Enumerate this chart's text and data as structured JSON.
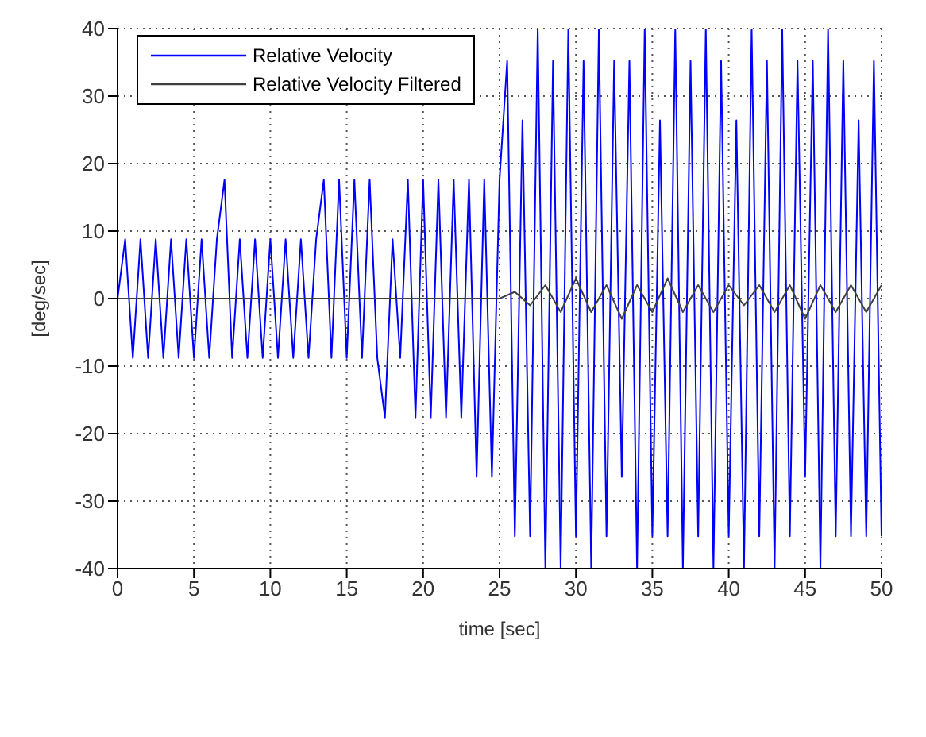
{
  "chart_data": {
    "type": "line",
    "xlabel": "time [sec]",
    "ylabel": "[deg/sec]",
    "xlim": [
      0,
      50
    ],
    "xticks": [
      0,
      5,
      10,
      15,
      20,
      25,
      30,
      35,
      40,
      45,
      50
    ],
    "ylim": [
      -40,
      40
    ],
    "yticks": [
      -40,
      -30,
      -20,
      -10,
      0,
      10,
      20,
      30,
      40
    ],
    "grid": true,
    "legend": "top left",
    "marker": "none",
    "line_style": "solid",
    "series": [
      {
        "name": "Relative Velocity",
        "color": "#0000ff",
        "x": [
          0,
          0.5,
          1,
          1.5,
          2,
          2.5,
          3,
          3.5,
          4,
          4.5,
          5,
          5.5,
          6,
          6.5,
          7,
          7.5,
          8,
          8.5,
          9,
          9.5,
          10,
          10.5,
          11,
          11.5,
          12,
          12.5,
          13,
          13.5,
          14,
          14.5,
          15,
          15.5,
          16,
          16.5,
          17,
          17.5,
          18,
          18.5,
          19,
          19.5,
          20,
          20.5,
          21,
          21.5,
          22,
          22.5,
          23,
          23.5,
          24,
          24.5,
          25,
          25.5,
          26,
          26.5,
          27,
          27.5,
          28,
          28.5,
          29,
          29.5,
          30,
          30.5,
          31,
          31.5,
          32,
          32.5,
          33,
          33.5,
          34,
          34.5,
          35,
          35.5,
          36,
          36.5,
          37,
          37.5,
          38,
          38.5,
          39,
          39.5,
          40,
          40.5,
          41,
          41.5,
          42,
          42.5,
          43,
          43.5,
          44,
          44.5,
          45,
          45.5,
          46,
          46.5,
          47,
          47.5,
          48,
          48.5,
          49,
          49.5,
          50
        ],
        "values": [
          0,
          8.8,
          -8.8,
          8.8,
          -8.8,
          8.8,
          -8.8,
          8.8,
          -8.8,
          8.8,
          -8.8,
          8.8,
          -8.8,
          8.8,
          17.6,
          -8.8,
          8.8,
          -8.8,
          8.8,
          -8.8,
          8.8,
          -8.8,
          8.8,
          -8.8,
          8.8,
          -8.8,
          8.8,
          17.6,
          -8.8,
          17.6,
          -8.8,
          17.6,
          -8.8,
          17.6,
          -8.8,
          -17.6,
          8.8,
          -8.8,
          17.6,
          -17.6,
          17.6,
          -17.6,
          17.6,
          -17.6,
          17.6,
          -17.6,
          17.6,
          -26.4,
          17.6,
          -26.4,
          17.6,
          35.2,
          -35.2,
          26.4,
          -35.2,
          40,
          -40,
          35.2,
          -40,
          40,
          -35.2,
          35.2,
          -40,
          40,
          -35.2,
          35.2,
          -26.4,
          35.2,
          -40,
          40,
          -35.2,
          26.4,
          -35.2,
          40,
          -40,
          35.2,
          -35.2,
          40,
          -40,
          35.2,
          -35.2,
          26.4,
          -40,
          40,
          -35.2,
          35.2,
          -40,
          40,
          -35.2,
          35.2,
          -26.4,
          35.2,
          -40,
          40,
          -35.2,
          35.2,
          -35.2,
          26.4,
          -35.2,
          35.2,
          -35.2
        ]
      },
      {
        "name": "Relative Velocity Filtered",
        "color": "#404040",
        "x": [
          0,
          5,
          10,
          15,
          20,
          24,
          25,
          26,
          27,
          28,
          29,
          30,
          31,
          32,
          33,
          34,
          35,
          36,
          37,
          38,
          39,
          40,
          41,
          42,
          43,
          44,
          45,
          46,
          47,
          48,
          49,
          50
        ],
        "values": [
          0,
          0,
          0,
          0,
          0,
          0,
          0,
          1,
          -1,
          2,
          -2,
          3,
          -2,
          2,
          -3,
          2,
          -2,
          3,
          -2,
          2,
          -2,
          2,
          -1,
          2,
          -2,
          2,
          -3,
          2,
          -2,
          2,
          -2,
          2
        ]
      }
    ]
  }
}
